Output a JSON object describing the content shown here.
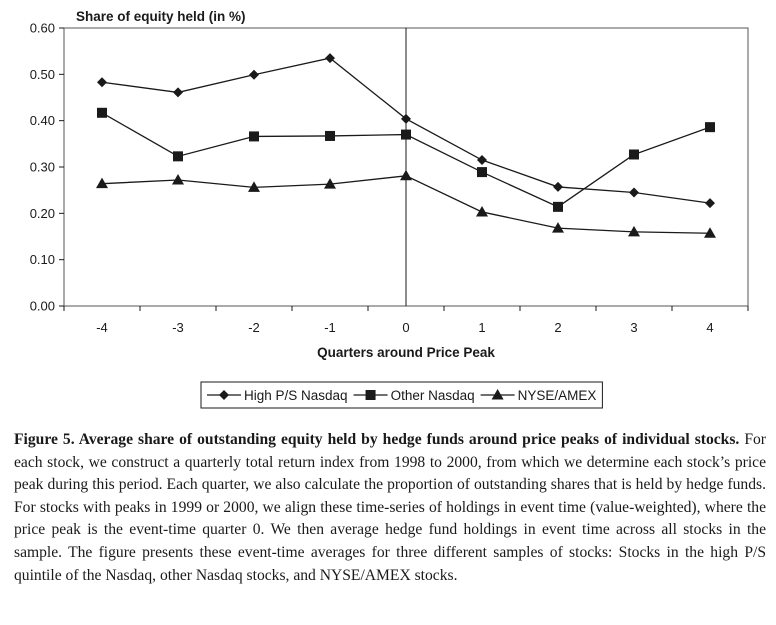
{
  "chart_data": {
    "type": "line",
    "title": "",
    "ylabel": "Share of equity held (in %)",
    "xlabel": "Quarters around Price Peak",
    "x": [
      -4,
      -3,
      -2,
      -1,
      0,
      1,
      2,
      3,
      4
    ],
    "ylim": [
      0.0,
      0.6
    ],
    "yticks": [
      "0.00",
      "0.10",
      "0.20",
      "0.30",
      "0.40",
      "0.50",
      "0.60"
    ],
    "xticks": [
      "-4",
      "-3",
      "-2",
      "-1",
      "0",
      "1",
      "2",
      "3",
      "4"
    ],
    "grid": false,
    "vertical_line_at": 0,
    "legend_position": "bottom",
    "series": [
      {
        "name": "High P/S Nasdaq",
        "marker": "diamond",
        "values": [
          0.483,
          0.461,
          0.499,
          0.535,
          0.404,
          0.315,
          0.257,
          0.245,
          0.222
        ]
      },
      {
        "name": "Other Nasdaq",
        "marker": "square",
        "values": [
          0.417,
          0.323,
          0.366,
          0.367,
          0.37,
          0.289,
          0.214,
          0.327,
          0.386
        ]
      },
      {
        "name": "NYSE/AMEX",
        "marker": "triangle",
        "values": [
          0.264,
          0.272,
          0.256,
          0.263,
          0.281,
          0.203,
          0.168,
          0.16,
          0.157
        ]
      }
    ]
  },
  "caption": {
    "lead": "Figure 5.  Average share of outstanding equity held by hedge funds around price peaks of individual stocks.",
    "body": " For each stock, we construct a quarterly total return index from 1998 to 2000, from which we determine each stock’s price peak during this period. Each quarter, we also calculate the proportion of outstanding shares that is held by hedge funds. For stocks with peaks in 1999 or 2000, we align these time-series of holdings in event time (value-weighted), where the price peak is the event-time quarter 0. We then average hedge fund holdings in event time across all stocks in the sample. The figure presents these event-time averages for three different samples of stocks: Stocks in the high P/S quintile of the Nasdaq, other Nasdaq stocks, and NYSE/AMEX stocks."
  }
}
